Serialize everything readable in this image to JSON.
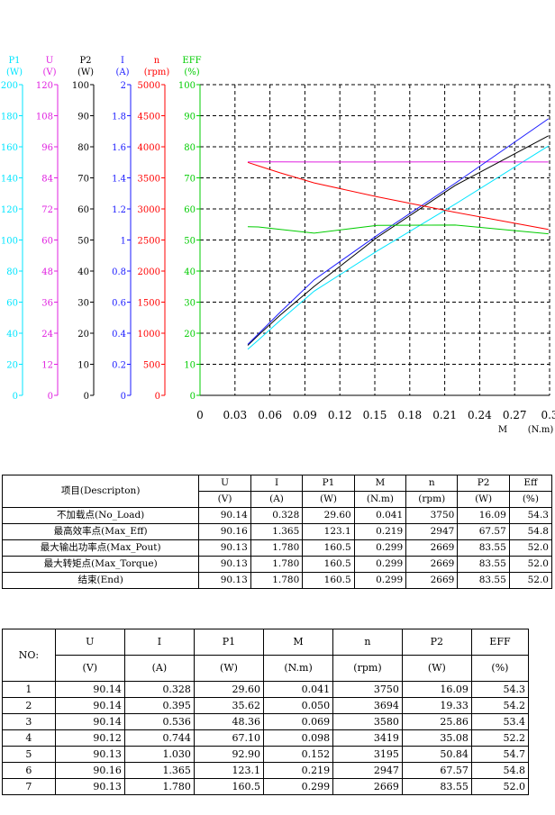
{
  "chart_data": {
    "type": "line",
    "x_axis": {
      "label": "M",
      "unit": "(N.m)",
      "range": [
        0,
        0.3
      ],
      "ticks": [
        "0",
        "0.03",
        "0.06",
        "0.09",
        "0.12",
        "0.15",
        "0.18",
        "0.21",
        "0.24",
        "0.27",
        "0.3"
      ]
    },
    "y_axes": [
      {
        "name": "P1",
        "unit": "(W)",
        "color": "#00e5ff",
        "range": [
          0,
          200
        ],
        "ticks": [
          "0",
          "20",
          "40",
          "60",
          "80",
          "100",
          "120",
          "140",
          "160",
          "180",
          "200"
        ]
      },
      {
        "name": "U",
        "unit": "(V)",
        "color": "#e020e0",
        "range": [
          0,
          120
        ],
        "ticks": [
          "0",
          "12",
          "24",
          "36",
          "48",
          "60",
          "72",
          "84",
          "96",
          "108",
          "120"
        ]
      },
      {
        "name": "P2",
        "unit": "(W)",
        "color": "#000000",
        "range": [
          0,
          100
        ],
        "ticks": [
          "0",
          "10",
          "20",
          "30",
          "40",
          "50",
          "60",
          "70",
          "80",
          "90",
          "100"
        ]
      },
      {
        "name": "I",
        "unit": "(A)",
        "color": "#1a1aff",
        "range": [
          0,
          2
        ],
        "ticks": [
          "0",
          "0.2",
          "0.4",
          "0.6",
          "0.8",
          "1",
          "1.2",
          "1.4",
          "1.6",
          "1.8",
          "2"
        ]
      },
      {
        "name": "n",
        "unit": "(rpm)",
        "color": "#ff0000",
        "range": [
          0,
          5000
        ],
        "ticks": [
          "0",
          "500",
          "1000",
          "1500",
          "2000",
          "2500",
          "3000",
          "3500",
          "4000",
          "4500",
          "5000"
        ]
      },
      {
        "name": "EFF",
        "unit": "(%)",
        "color": "#00cc00",
        "range": [
          0,
          100
        ],
        "ticks": [
          "0",
          "10",
          "20",
          "30",
          "40",
          "50",
          "60",
          "70",
          "80",
          "90",
          "100"
        ]
      }
    ],
    "x": [
      0.041,
      0.05,
      0.069,
      0.098,
      0.152,
      0.219,
      0.299
    ],
    "series": [
      {
        "name": "P1",
        "axis": 0,
        "color": "#00e5ff",
        "values": [
          29.6,
          35.62,
          48.36,
          67.1,
          92.9,
          123.1,
          160.5
        ]
      },
      {
        "name": "U",
        "axis": 1,
        "color": "#e020e0",
        "values": [
          90.14,
          90.14,
          90.14,
          90.12,
          90.13,
          90.16,
          90.13
        ]
      },
      {
        "name": "P2",
        "axis": 2,
        "color": "#000000",
        "values": [
          16.09,
          19.33,
          25.86,
          35.08,
          50.84,
          67.57,
          83.55
        ]
      },
      {
        "name": "I",
        "axis": 3,
        "color": "#1a1aff",
        "values": [
          0.328,
          0.395,
          0.536,
          0.744,
          1.03,
          1.365,
          1.78
        ]
      },
      {
        "name": "n",
        "axis": 4,
        "color": "#ff0000",
        "values": [
          3750,
          3694,
          3580,
          3419,
          3195,
          2947,
          2669
        ]
      },
      {
        "name": "EFF",
        "axis": 5,
        "color": "#00cc00",
        "values": [
          54.3,
          54.2,
          53.4,
          52.2,
          54.7,
          54.8,
          52.0
        ]
      }
    ],
    "grid": true
  },
  "summary_table": {
    "item_header": "项目(Descripton)",
    "columns": [
      {
        "name": "U",
        "unit": "(V)"
      },
      {
        "name": "I",
        "unit": "(A)"
      },
      {
        "name": "P1",
        "unit": "(W)"
      },
      {
        "name": "M",
        "unit": "(N.m)"
      },
      {
        "name": "n",
        "unit": "(rpm)"
      },
      {
        "name": "P2",
        "unit": "(W)"
      },
      {
        "name": "Eff",
        "unit": "(%)"
      }
    ],
    "rows": [
      {
        "label": "不加载点(No_Load)",
        "cells": [
          "90.14",
          "0.328",
          "29.60",
          "0.041",
          "3750",
          "16.09",
          "54.3"
        ]
      },
      {
        "label": "最高效率点(Max_Eff)",
        "cells": [
          "90.16",
          "1.365",
          "123.1",
          "0.219",
          "2947",
          "67.57",
          "54.8"
        ]
      },
      {
        "label": "最大输出功率点(Max_Pout)",
        "cells": [
          "90.13",
          "1.780",
          "160.5",
          "0.299",
          "2669",
          "83.55",
          "52.0"
        ]
      },
      {
        "label": "最大转矩点(Max_Torque)",
        "cells": [
          "90.13",
          "1.780",
          "160.5",
          "0.299",
          "2669",
          "83.55",
          "52.0"
        ]
      },
      {
        "label": "结束(End)",
        "cells": [
          "90.13",
          "1.780",
          "160.5",
          "0.299",
          "2669",
          "83.55",
          "52.0"
        ]
      }
    ]
  },
  "points_table": {
    "no_header": "NO:",
    "columns": [
      {
        "name": "U",
        "unit": "(V)"
      },
      {
        "name": "I",
        "unit": "(A)"
      },
      {
        "name": "P1",
        "unit": "(W)"
      },
      {
        "name": "M",
        "unit": "(N.m)"
      },
      {
        "name": "n",
        "unit": "(rpm)"
      },
      {
        "name": "P2",
        "unit": "(W)"
      },
      {
        "name": "EFF",
        "unit": "(%)"
      }
    ],
    "rows": [
      {
        "no": "1",
        "cells": [
          "90.14",
          "0.328",
          "29.60",
          "0.041",
          "3750",
          "16.09",
          "54.3"
        ]
      },
      {
        "no": "2",
        "cells": [
          "90.14",
          "0.395",
          "35.62",
          "0.050",
          "3694",
          "19.33",
          "54.2"
        ]
      },
      {
        "no": "3",
        "cells": [
          "90.14",
          "0.536",
          "48.36",
          "0.069",
          "3580",
          "25.86",
          "53.4"
        ]
      },
      {
        "no": "4",
        "cells": [
          "90.12",
          "0.744",
          "67.10",
          "0.098",
          "3419",
          "35.08",
          "52.2"
        ]
      },
      {
        "no": "5",
        "cells": [
          "90.13",
          "1.030",
          "92.90",
          "0.152",
          "3195",
          "50.84",
          "54.7"
        ]
      },
      {
        "no": "6",
        "cells": [
          "90.16",
          "1.365",
          "123.1",
          "0.219",
          "2947",
          "67.57",
          "54.8"
        ]
      },
      {
        "no": "7",
        "cells": [
          "90.13",
          "1.780",
          "160.5",
          "0.299",
          "2669",
          "83.55",
          "52.0"
        ]
      }
    ]
  }
}
